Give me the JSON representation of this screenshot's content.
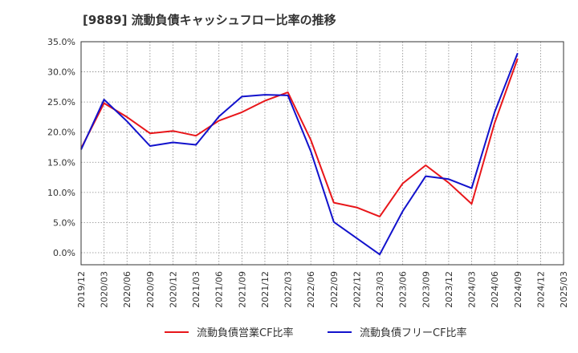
{
  "chart_data": {
    "type": "line",
    "title": "[9889]  流動負債キャッシュフロー比率の推移",
    "x": [
      "2019/12",
      "2020/03",
      "2020/06",
      "2020/09",
      "2020/12",
      "2021/03",
      "2021/06",
      "2021/09",
      "2021/12",
      "2022/03",
      "2022/06",
      "2022/09",
      "2022/12",
      "2023/03",
      "2023/06",
      "2023/09",
      "2023/12",
      "2024/03",
      "2024/06",
      "2024/09",
      "2024/12",
      "2025/03"
    ],
    "ylim": [
      -2,
      35
    ],
    "yticks": [
      0,
      5,
      10,
      15,
      20,
      25,
      30,
      35
    ],
    "ytick_labels": [
      "0.0%",
      "5.0%",
      "10.0%",
      "15.0%",
      "20.0%",
      "25.0%",
      "30.0%",
      "35.0%"
    ],
    "grid": true,
    "legend_position": "bottom",
    "series": [
      {
        "name": "流動負債営業CF比率",
        "color": "#e8161a",
        "values": [
          17.3,
          24.8,
          22.5,
          19.8,
          20.2,
          19.4,
          21.9,
          23.3,
          25.2,
          26.6,
          18.7,
          8.3,
          7.5,
          6.0,
          11.5,
          14.5,
          11.6,
          8.1,
          21.5,
          32.2,
          null,
          null
        ]
      },
      {
        "name": "流動負債フリーCF比率",
        "color": "#1212cc",
        "values": [
          17.1,
          25.4,
          21.8,
          17.7,
          18.3,
          17.9,
          22.6,
          25.9,
          26.2,
          26.1,
          16.8,
          5.1,
          2.4,
          -0.3,
          6.9,
          12.7,
          12.2,
          10.7,
          23.3,
          33.1,
          null,
          null
        ]
      }
    ]
  }
}
